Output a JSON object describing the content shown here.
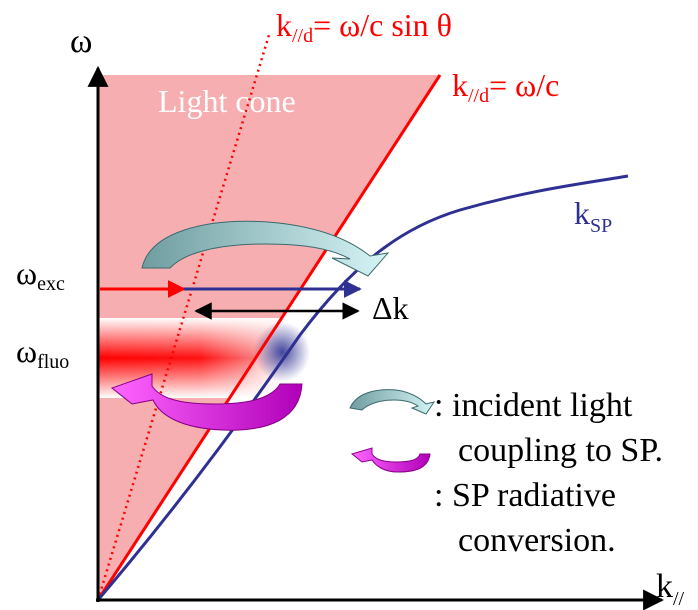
{
  "axes": {
    "y_label": "ω",
    "x_label_main": "k",
    "x_label_sub": "//"
  },
  "region": {
    "light_cone_label": "Light cone"
  },
  "lines": {
    "oblique_label_main": "k",
    "oblique_label_sub": "//d",
    "oblique_label_rest": "= ω/c sin θ",
    "light_line_label_main": "k",
    "light_line_label_sub": "//d",
    "light_line_label_rest": "= ω/c",
    "sp_label_main": "k",
    "sp_label_sub": "SP"
  },
  "levels": {
    "exc_main": "ω",
    "exc_sub": "exc",
    "fluo_main": "ω",
    "fluo_sub": "fluo"
  },
  "delta_k_label": "Δk",
  "legend": {
    "incident_line1": ": incident light",
    "incident_line2": "coupling to SP.",
    "radiative_line1": ": SP radiative",
    "radiative_line2": "conversion."
  },
  "colors": {
    "light_cone_fill": "#f6aeb0",
    "red": "#ff0000",
    "blue": "#2e3192",
    "teal_arrow": "#7aa8ac",
    "magenta_arrow": "#cc00cc",
    "text": "#000000",
    "cone_label": "#ffffff"
  }
}
